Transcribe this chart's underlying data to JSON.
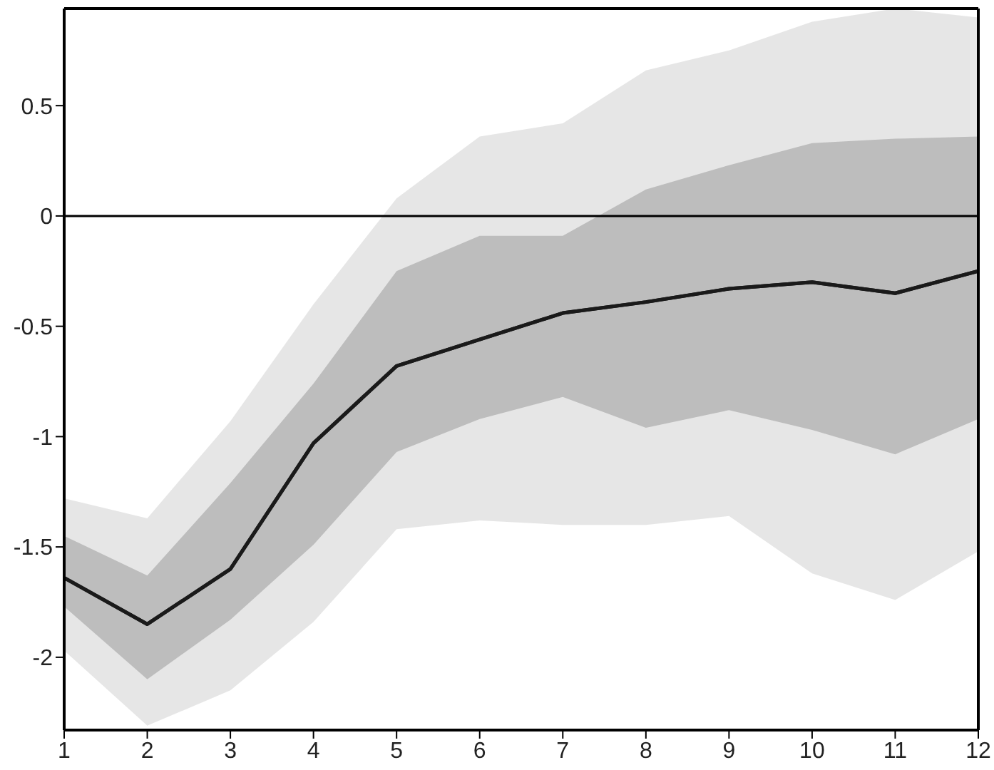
{
  "chart_data": {
    "type": "line",
    "x": [
      1,
      2,
      3,
      4,
      5,
      6,
      7,
      8,
      9,
      10,
      11,
      12
    ],
    "series": [
      {
        "color": "#1a1a1a",
        "values": [
          -1.64,
          -1.85,
          -1.6,
          -1.03,
          -0.68,
          -0.56,
          -0.44,
          -0.39,
          -0.33,
          -0.3,
          -0.35,
          -0.25
        ],
        "lower": [
          -1.97,
          -2.31,
          -2.15,
          -1.84,
          -1.42,
          -1.38,
          -1.4,
          -1.4,
          -1.36,
          -1.62,
          -1.74,
          -1.52
        ],
        "upper": [
          -1.28,
          -1.37,
          -0.93,
          -0.4,
          0.08,
          0.36,
          0.42,
          0.66,
          0.75,
          0.88,
          0.94,
          0.9
        ]
      },
      {
        "color": "#1a1a1a",
        "values": [
          -1.64,
          -1.85,
          -1.6,
          -1.03,
          -0.68,
          -0.56,
          -0.44,
          -0.39,
          -0.33,
          -0.3,
          -0.35,
          -0.25
        ],
        "lower": [
          -1.77,
          -2.1,
          -1.83,
          -1.49,
          -1.07,
          -0.92,
          -0.82,
          -0.96,
          -0.88,
          -0.97,
          -1.08,
          -0.92
        ],
        "upper": [
          -1.45,
          -1.63,
          -1.21,
          -0.76,
          -0.25,
          -0.09,
          -0.09,
          0.12,
          0.23,
          0.33,
          0.35,
          0.36
        ]
      }
    ],
    "xlim": [
      1,
      12
    ],
    "xticks": [
      1,
      2,
      3,
      4,
      5,
      6,
      7,
      8,
      9,
      10,
      11,
      12
    ],
    "ylim": [
      -2.33,
      0.94
    ],
    "yticks": [
      -2,
      -1.5,
      -1,
      -0.5,
      0,
      0.5
    ],
    "ref_lines": [
      {
        "axis": "y",
        "value": 0,
        "color": "#000000"
      }
    ],
    "grid": false,
    "legend": false,
    "marker": "none",
    "line_style": "solid"
  }
}
